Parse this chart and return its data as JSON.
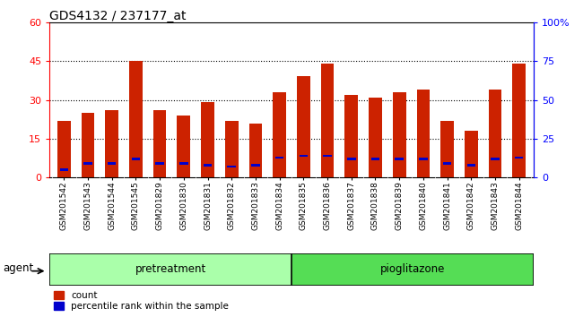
{
  "title": "GDS4132 / 237177_at",
  "samples": [
    "GSM201542",
    "GSM201543",
    "GSM201544",
    "GSM201545",
    "GSM201829",
    "GSM201830",
    "GSM201831",
    "GSM201832",
    "GSM201833",
    "GSM201834",
    "GSM201835",
    "GSM201836",
    "GSM201837",
    "GSM201838",
    "GSM201839",
    "GSM201840",
    "GSM201841",
    "GSM201842",
    "GSM201843",
    "GSM201844"
  ],
  "counts": [
    22,
    25,
    26,
    45,
    26,
    24,
    29,
    22,
    21,
    33,
    39,
    44,
    32,
    31,
    33,
    34,
    22,
    18,
    34,
    44
  ],
  "percentile_ranks": [
    5,
    9,
    9,
    12,
    9,
    9,
    8,
    7,
    8,
    13,
    14,
    14,
    12,
    12,
    12,
    12,
    9,
    8,
    12,
    13
  ],
  "pretreatment_count": 10,
  "pioglitazone_count": 10,
  "left_ylim": [
    0,
    60
  ],
  "right_ylim": [
    0,
    100
  ],
  "left_yticks": [
    0,
    15,
    30,
    45,
    60
  ],
  "right_yticks": [
    0,
    25,
    50,
    75,
    100
  ],
  "right_yticklabels": [
    "0",
    "25",
    "50",
    "75",
    "100%"
  ],
  "bar_color": "#cc2200",
  "dot_color": "#0000cc",
  "grid_lines": [
    15,
    30,
    45
  ],
  "pretreatment_color": "#aaffaa",
  "pioglitazone_color": "#55dd55",
  "agent_label": "agent",
  "legend_count": "count",
  "legend_percentile": "percentile rank within the sample",
  "bar_width": 0.55,
  "title_fontsize": 10,
  "axis_bg_color": "#d0d0d0",
  "plot_bg_color": "#ffffff"
}
